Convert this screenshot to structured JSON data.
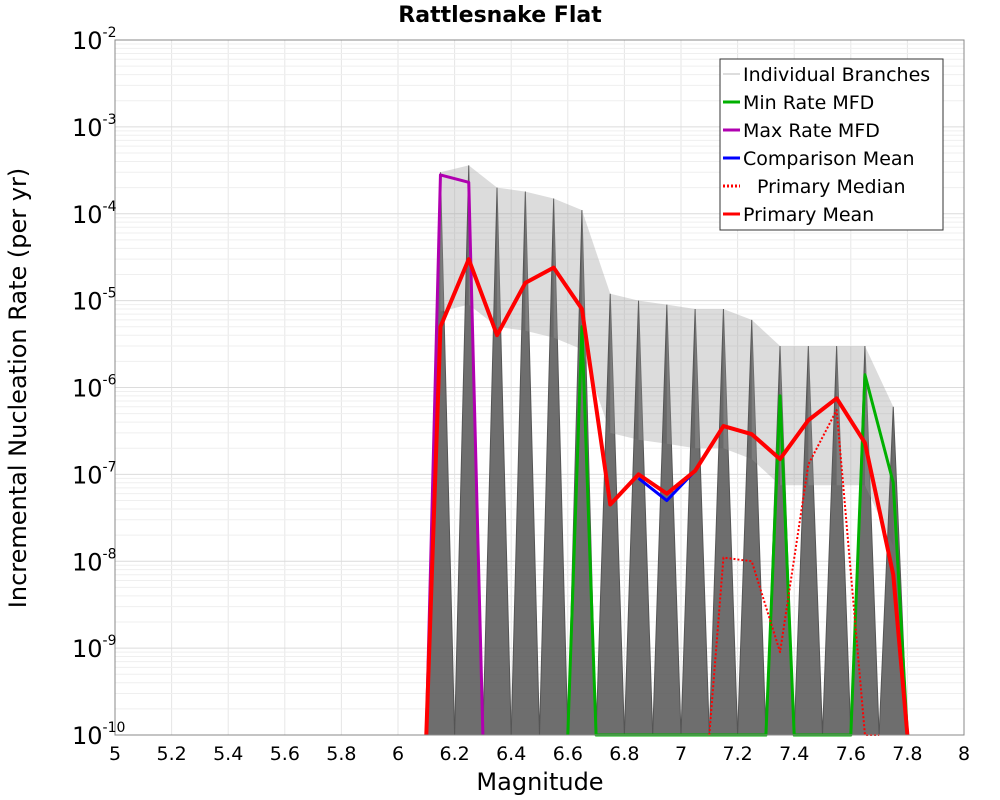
{
  "chart_data": {
    "type": "line",
    "title": "Rattlesnake Flat",
    "xlabel": "Magnitude",
    "ylabel": "Incremental Nucleation Rate (per yr)",
    "xlim": [
      5,
      8
    ],
    "ylim": [
      1e-10,
      0.01
    ],
    "y_scale": "log",
    "x_ticks": [
      "5",
      "5.2",
      "5.4",
      "5.6",
      "5.8",
      "6",
      "6.2",
      "6.4",
      "6.6",
      "6.8",
      "7",
      "7.2",
      "7.4",
      "7.6",
      "7.8",
      "8"
    ],
    "y_ticks": [
      {
        "base": "10",
        "exp": "-10"
      },
      {
        "base": "10",
        "exp": "-9"
      },
      {
        "base": "10",
        "exp": "-8"
      },
      {
        "base": "10",
        "exp": "-7"
      },
      {
        "base": "10",
        "exp": "-6"
      },
      {
        "base": "10",
        "exp": "-5"
      },
      {
        "base": "10",
        "exp": "-4"
      },
      {
        "base": "10",
        "exp": "-3"
      },
      {
        "base": "10",
        "exp": "-2"
      }
    ],
    "grid": true,
    "legend_position": "top-right",
    "series": [
      {
        "name": "Min Rate MFD",
        "color": "#00b000",
        "style": "solid",
        "x": [
          6.6,
          6.65,
          6.7,
          7.3,
          7.35,
          7.4,
          7.6,
          7.65,
          7.75,
          7.8
        ],
        "y": [
          1e-10,
          5e-06,
          1e-10,
          1e-10,
          8e-07,
          1e-10,
          1e-10,
          1.4e-06,
          8e-08,
          1e-10
        ]
      },
      {
        "name": "Max Rate MFD",
        "color": "#b000b0",
        "style": "solid",
        "x": [
          6.1,
          6.15,
          6.25,
          6.3
        ],
        "y": [
          1e-10,
          0.00028,
          0.00023,
          1e-10
        ]
      },
      {
        "name": "Comparison Mean",
        "color": "#0000ff",
        "style": "solid",
        "x": [
          6.85,
          6.95,
          7.05
        ],
        "y": [
          9e-08,
          5e-08,
          1.1e-07
        ]
      },
      {
        "name": "Primary Median",
        "color": "#ff0000",
        "style": "dotted",
        "x": [
          7.1,
          7.15,
          7.25,
          7.35,
          7.45,
          7.55,
          7.65,
          7.7
        ],
        "y": [
          1e-10,
          1.1e-08,
          1e-08,
          9e-10,
          1.3e-07,
          5.5e-07,
          1e-10,
          1e-10
        ]
      },
      {
        "name": "Primary Mean",
        "color": "#ff0000",
        "style": "solid",
        "x": [
          6.1,
          6.15,
          6.25,
          6.35,
          6.45,
          6.55,
          6.65,
          6.75,
          6.85,
          6.95,
          7.05,
          7.15,
          7.25,
          7.35,
          7.45,
          7.55,
          7.65,
          7.75,
          7.8
        ],
        "y": [
          1e-10,
          5e-06,
          3e-05,
          4e-06,
          1.6e-05,
          2.4e-05,
          8e-06,
          4.5e-08,
          1e-07,
          6e-08,
          1.1e-07,
          3.6e-07,
          2.9e-07,
          1.5e-07,
          4.2e-07,
          7.5e-07,
          2.3e-07,
          7e-09,
          1e-10
        ]
      }
    ],
    "branches": {
      "name": "Individual Branches",
      "color": "#555555",
      "bins": [
        6.15,
        6.25,
        6.35,
        6.45,
        6.55,
        6.65,
        6.75,
        6.85,
        6.95,
        7.05,
        7.15,
        7.25,
        7.35,
        7.45,
        7.55,
        7.65,
        7.75
      ],
      "band_top": [
        0.0003,
        0.00036,
        0.0002,
        0.00018,
        0.00015,
        0.00011,
        1.2e-05,
        1e-05,
        9e-06,
        8e-06,
        8e-06,
        6e-06,
        3e-06,
        3e-06,
        3e-06,
        3e-06,
        6e-07
      ],
      "band_bottom": [
        1e-10,
        1e-10,
        1e-10,
        1e-10,
        1e-10,
        1e-10,
        1e-10,
        1e-10,
        1e-10,
        1e-10,
        1e-10,
        1e-10,
        1e-10,
        1e-10,
        1e-10,
        1e-10,
        1e-10
      ]
    },
    "legend": [
      {
        "label": "Individual Branches",
        "color": "#bbbbbb",
        "style": "thin"
      },
      {
        "label": "Min Rate MFD",
        "color": "#00b000",
        "style": "solid"
      },
      {
        "label": "Max Rate MFD",
        "color": "#b000b0",
        "style": "solid"
      },
      {
        "label": "Comparison Mean",
        "color": "#0000ff",
        "style": "solid"
      },
      {
        "label": "Primary Median",
        "color": "#ff0000",
        "style": "dotted"
      },
      {
        "label": "Primary Mean",
        "color": "#ff0000",
        "style": "solid"
      }
    ]
  }
}
